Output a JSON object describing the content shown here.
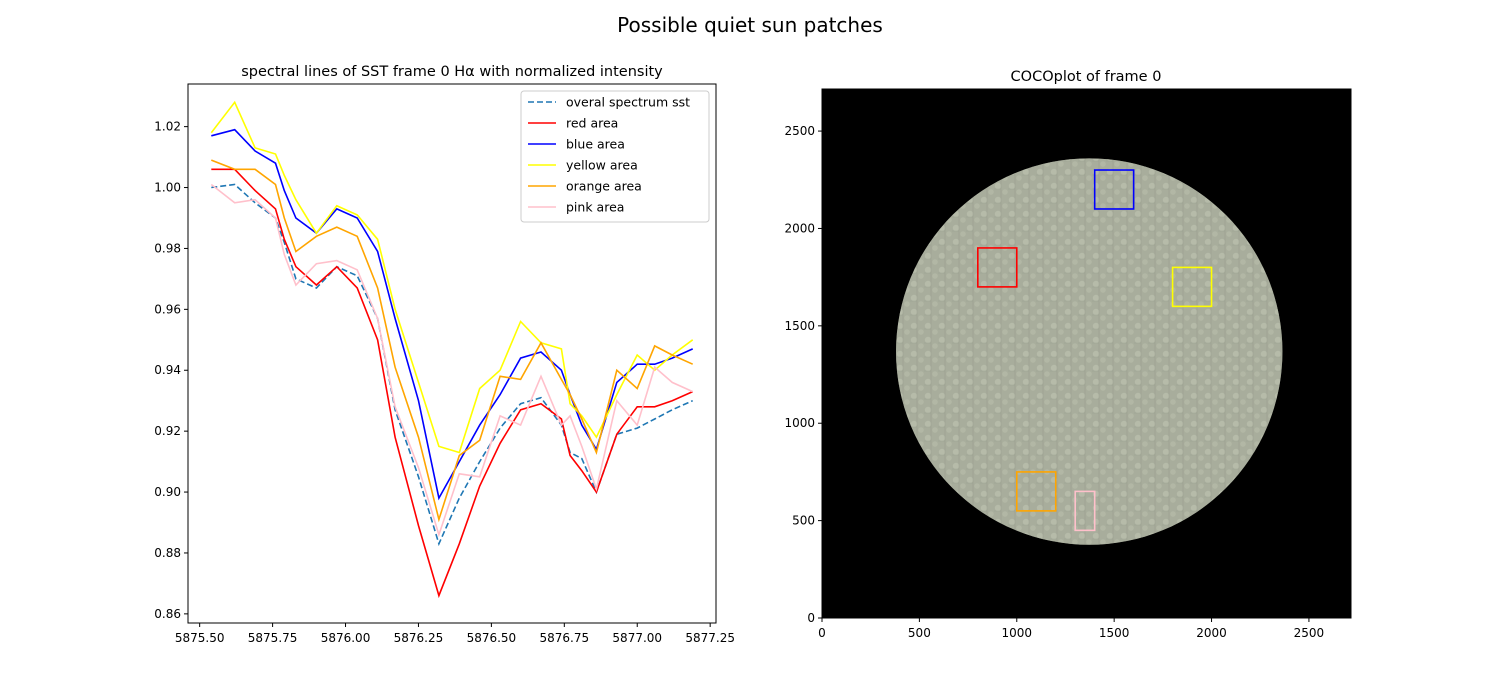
{
  "figure": {
    "suptitle": "Possible quiet sun patches"
  },
  "chart_data": [
    {
      "type": "line",
      "title": "spectral lines of SST frame 0 Hα with normalized intensity",
      "xlabel": "",
      "ylabel": "",
      "xlim": [
        5875.46,
        5877.27
      ],
      "ylim": [
        0.857,
        1.034
      ],
      "xticks": [
        5875.5,
        5875.75,
        5876.0,
        5876.25,
        5876.5,
        5876.75,
        5877.0,
        5877.25
      ],
      "xtick_labels": [
        "5875.50",
        "5875.75",
        "5876.00",
        "5876.25",
        "5876.50",
        "5876.75",
        "5877.00",
        "5877.25"
      ],
      "yticks": [
        0.86,
        0.88,
        0.9,
        0.92,
        0.94,
        0.96,
        0.98,
        1.0,
        1.02
      ],
      "ytick_labels": [
        "0.86",
        "0.88",
        "0.90",
        "0.92",
        "0.94",
        "0.96",
        "0.98",
        "1.00",
        "1.02"
      ],
      "grid": false,
      "legend": "top-right",
      "x": [
        5875.54,
        5875.62,
        5875.69,
        5875.76,
        5875.79,
        5875.83,
        5875.9,
        5875.97,
        5876.04,
        5876.11,
        5876.17,
        5876.25,
        5876.32,
        5876.39,
        5876.46,
        5876.53,
        5876.6,
        5876.67,
        5876.74,
        5876.77,
        5876.81,
        5876.86,
        5876.93,
        5877.0,
        5877.06,
        5877.12,
        5877.19
      ],
      "series": [
        {
          "name": "overal spectrum sst",
          "color": "#1f77b4",
          "dash": true,
          "values": [
            1.0,
            1.001,
            0.995,
            0.99,
            0.982,
            0.97,
            0.967,
            0.974,
            0.971,
            0.957,
            0.927,
            0.905,
            0.883,
            0.898,
            0.91,
            0.921,
            0.929,
            0.931,
            0.922,
            0.913,
            0.911,
            0.9,
            0.919,
            0.921,
            0.924,
            0.927,
            0.93
          ]
        },
        {
          "name": "red area",
          "color": "#ff0000",
          "dash": false,
          "values": [
            1.006,
            1.006,
            0.999,
            0.993,
            0.983,
            0.974,
            0.968,
            0.974,
            0.967,
            0.95,
            0.918,
            0.889,
            0.866,
            0.883,
            0.902,
            0.916,
            0.927,
            0.929,
            0.924,
            0.912,
            0.907,
            0.9,
            0.919,
            0.928,
            0.928,
            0.93,
            0.933
          ]
        },
        {
          "name": "blue area",
          "color": "#0000ff",
          "dash": false,
          "values": [
            1.017,
            1.019,
            1.012,
            1.008,
            0.999,
            0.99,
            0.985,
            0.993,
            0.99,
            0.979,
            0.957,
            0.93,
            0.898,
            0.91,
            0.922,
            0.932,
            0.944,
            0.946,
            0.94,
            0.932,
            0.922,
            0.914,
            0.936,
            0.942,
            0.942,
            0.944,
            0.947
          ]
        },
        {
          "name": "yellow area",
          "color": "#ffff00",
          "dash": false,
          "values": [
            1.018,
            1.028,
            1.013,
            1.011,
            1.004,
            0.996,
            0.985,
            0.994,
            0.991,
            0.983,
            0.96,
            0.936,
            0.915,
            0.913,
            0.934,
            0.94,
            0.956,
            0.949,
            0.947,
            0.929,
            0.925,
            0.918,
            0.932,
            0.945,
            0.94,
            0.945,
            0.95
          ]
        },
        {
          "name": "orange area",
          "color": "#ffa500",
          "dash": false,
          "values": [
            1.009,
            1.006,
            1.006,
            1.001,
            0.99,
            0.979,
            0.984,
            0.987,
            0.984,
            0.967,
            0.941,
            0.918,
            0.891,
            0.912,
            0.917,
            0.938,
            0.937,
            0.949,
            0.937,
            0.932,
            0.924,
            0.913,
            0.94,
            0.934,
            0.948,
            0.945,
            0.942
          ]
        },
        {
          "name": "pink area",
          "color": "#ffc0cb",
          "dash": false,
          "values": [
            1.001,
            0.995,
            0.996,
            0.99,
            0.978,
            0.968,
            0.975,
            0.976,
            0.973,
            0.957,
            0.928,
            0.908,
            0.886,
            0.906,
            0.905,
            0.925,
            0.922,
            0.938,
            0.922,
            0.925,
            0.915,
            0.901,
            0.93,
            0.922,
            0.941,
            0.936,
            0.933
          ]
        }
      ]
    },
    {
      "type": "image",
      "title": "COCOplot of frame 0",
      "xlim": [
        0,
        2716
      ],
      "ylim": [
        0,
        2716
      ],
      "xticks": [
        0,
        500,
        1000,
        1500,
        2000,
        2500
      ],
      "xtick_labels": [
        "0",
        "500",
        "1000",
        "1500",
        "2000",
        "2500"
      ],
      "yticks": [
        0,
        500,
        1000,
        1500,
        2000,
        2500
      ],
      "ytick_labels": [
        "0",
        "500",
        "1000",
        "1500",
        "2000",
        "2500"
      ],
      "background_color": "#000000",
      "disk_color": "#a6ab9a",
      "disk": {
        "cx": 1372,
        "cy": 1368,
        "r": 992
      },
      "boxes": [
        {
          "name": "red",
          "color": "#ff0000",
          "x0": 800,
          "x1": 1000,
          "y0": 1700,
          "y1": 1900
        },
        {
          "name": "blue",
          "color": "#0000ff",
          "x0": 1400,
          "x1": 1600,
          "y0": 2100,
          "y1": 2300
        },
        {
          "name": "yellow",
          "color": "#ffff00",
          "x0": 1800,
          "x1": 2000,
          "y0": 1600,
          "y1": 1800
        },
        {
          "name": "orange",
          "color": "#ffa500",
          "x0": 1000,
          "x1": 1200,
          "y0": 550,
          "y1": 750
        },
        {
          "name": "pink",
          "color": "#ffc0cb",
          "x0": 1300,
          "x1": 1400,
          "y0": 450,
          "y1": 650
        }
      ]
    }
  ]
}
